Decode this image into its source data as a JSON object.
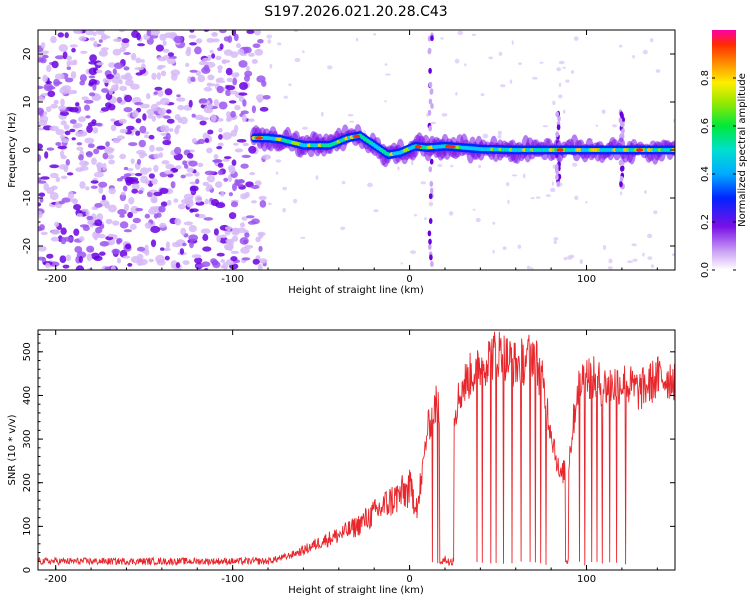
{
  "title": "S197.2026.021.20.28.C43",
  "chart_data": [
    {
      "type": "heatmap",
      "name": "spectrogram",
      "xlabel": "Height of straight line (km)",
      "ylabel": "Frequency (Hz)",
      "xlim": [
        -210,
        150
      ],
      "ylim": [
        -25,
        25
      ],
      "xticks": [
        -200,
        -100,
        0,
        100
      ],
      "yticks": [
        -20,
        -10,
        0,
        10,
        20
      ],
      "colorbar": {
        "label": "Normalized spectral amplitude",
        "range": [
          0,
          1
        ],
        "ticks": [
          0.0,
          0.2,
          0.4,
          0.6,
          0.8
        ],
        "tick_labels": [
          "0.0",
          "0.2",
          "0.4",
          "0.6",
          "0.8"
        ]
      },
      "noise_region_km": [
        -210,
        -80
      ],
      "signal_track": {
        "x": [
          -88,
          -80,
          -73,
          -60,
          -45,
          -35,
          -28,
          -20,
          -12,
          -5,
          3,
          10,
          20,
          40,
          60,
          80,
          100,
          120,
          140,
          150
        ],
        "frequency_hz": [
          2.5,
          2.5,
          2.2,
          1.0,
          1.0,
          2.5,
          3.0,
          1.0,
          -1.0,
          -0.5,
          0.8,
          0.5,
          0.8,
          0.2,
          0.0,
          0.0,
          0.0,
          0.0,
          0.0,
          0.0
        ]
      },
      "vertical_streaks_km": [
        12,
        84,
        120
      ]
    },
    {
      "type": "line",
      "name": "snr",
      "xlabel": "Height of straight line (km)",
      "ylabel": "SNR (10 * v/v)",
      "xlim": [
        -210,
        150
      ],
      "ylim": [
        0,
        550
      ],
      "xticks": [
        -200,
        -100,
        0,
        100
      ],
      "yticks": [
        0,
        100,
        200,
        300,
        400,
        500
      ],
      "color": "#e8262b",
      "envelope": {
        "x": [
          -210,
          -100,
          -80,
          -70,
          -60,
          -50,
          -40,
          -30,
          -20,
          -10,
          0,
          5,
          10,
          15,
          20,
          25,
          30,
          35,
          40,
          50,
          60,
          65,
          70,
          75,
          80,
          82,
          85,
          90,
          95,
          100,
          110,
          120,
          130,
          140,
          150
        ],
        "y": [
          20,
          20,
          20,
          30,
          45,
          65,
          80,
          100,
          130,
          160,
          185,
          150,
          320,
          380,
          340,
          360,
          420,
          450,
          470,
          500,
          470,
          480,
          500,
          430,
          320,
          280,
          210,
          250,
          420,
          450,
          420,
          430,
          410,
          440,
          440
        ]
      },
      "dropouts_km": [
        [
          17,
          25
        ],
        [
          88,
          90
        ]
      ],
      "drop_spikes_km": [
        13,
        16,
        38,
        41,
        46,
        49,
        53,
        58,
        63,
        68,
        71,
        74,
        77,
        96,
        99,
        103,
        106,
        109,
        113,
        117,
        122
      ]
    }
  ]
}
